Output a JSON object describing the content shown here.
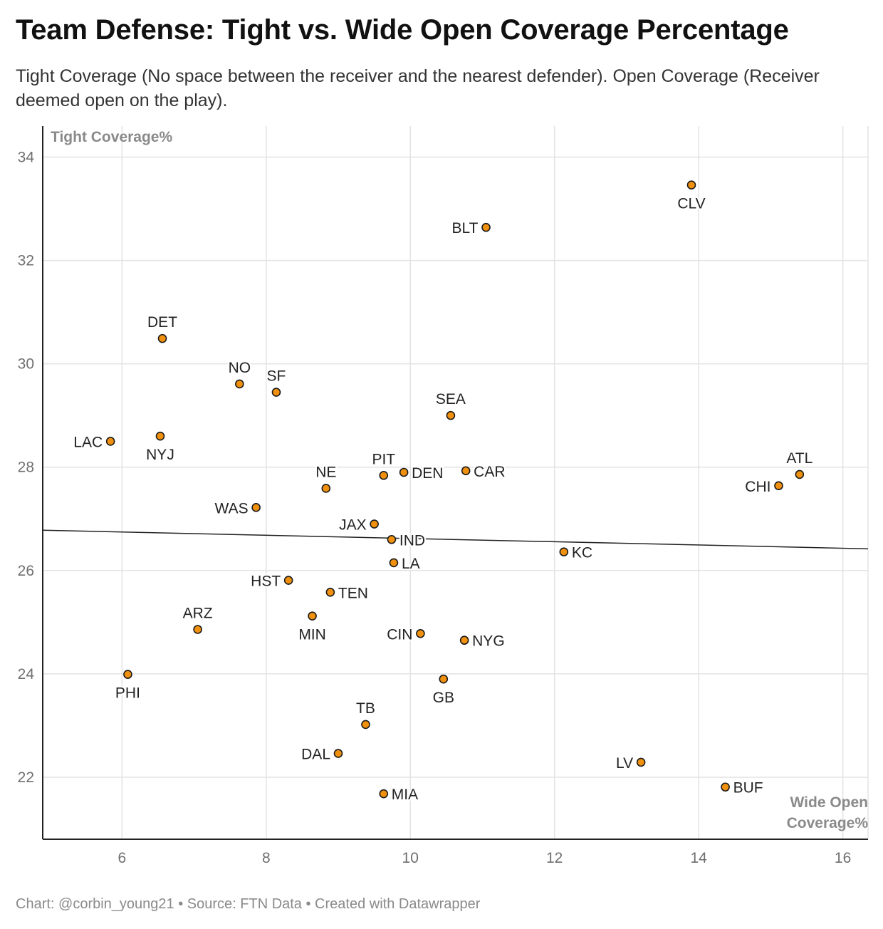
{
  "header": {
    "title": "Team Defense: Tight vs. Wide Open Coverage Percentage",
    "subtitle": "Tight Coverage (No space between the receiver and the nearest defender). Open Coverage (Receiver deemed open on the play)."
  },
  "footer": {
    "credit": "Chart: @corbin_young21 • Source: FTN Data • Created with Datawrapper"
  },
  "colors": {
    "point_fill": "#f0900f",
    "point_stroke": "#1a1a1a",
    "gridline": "#e3e3e3",
    "axis": "#222222",
    "trendline": "#222222"
  },
  "chart_data": {
    "type": "scatter",
    "xlabel": "Wide Open Coverage%",
    "ylabel": "Tight Coverage%",
    "xlim": [
      4.9,
      16.35
    ],
    "ylim": [
      20.8,
      34.6
    ],
    "xticks": [
      6,
      8,
      10,
      12,
      14,
      16
    ],
    "yticks": [
      22,
      24,
      26,
      28,
      30,
      32,
      34
    ],
    "grid": true,
    "trendline": {
      "x": [
        4.9,
        16.35
      ],
      "y": [
        26.78,
        26.42
      ]
    },
    "points": [
      {
        "team": "CLV",
        "x": 13.9,
        "y": 33.46,
        "label_pos": "below"
      },
      {
        "team": "BLT",
        "x": 11.05,
        "y": 32.64,
        "label_pos": "left"
      },
      {
        "team": "DET",
        "x": 6.56,
        "y": 30.49,
        "label_pos": "above"
      },
      {
        "team": "NO",
        "x": 7.63,
        "y": 29.61,
        "label_pos": "above"
      },
      {
        "team": "SF",
        "x": 8.14,
        "y": 29.45,
        "label_pos": "above"
      },
      {
        "team": "SEA",
        "x": 10.56,
        "y": 29.0,
        "label_pos": "above"
      },
      {
        "team": "LAC",
        "x": 5.84,
        "y": 28.5,
        "label_pos": "left"
      },
      {
        "team": "NYJ",
        "x": 6.53,
        "y": 28.6,
        "label_pos": "below"
      },
      {
        "team": "PIT",
        "x": 9.63,
        "y": 27.84,
        "label_pos": "above"
      },
      {
        "team": "DEN",
        "x": 9.91,
        "y": 27.9,
        "label_pos": "right"
      },
      {
        "team": "CAR",
        "x": 10.77,
        "y": 27.93,
        "label_pos": "right"
      },
      {
        "team": "NE",
        "x": 8.83,
        "y": 27.59,
        "label_pos": "above"
      },
      {
        "team": "ATL",
        "x": 15.4,
        "y": 27.86,
        "label_pos": "above"
      },
      {
        "team": "CHI",
        "x": 15.11,
        "y": 27.64,
        "label_pos": "left"
      },
      {
        "team": "WAS",
        "x": 7.86,
        "y": 27.22,
        "label_pos": "left"
      },
      {
        "team": "JAX",
        "x": 9.5,
        "y": 26.9,
        "label_pos": "left"
      },
      {
        "team": "IND",
        "x": 9.74,
        "y": 26.6,
        "label_pos": "right"
      },
      {
        "team": "KC",
        "x": 12.13,
        "y": 26.36,
        "label_pos": "right"
      },
      {
        "team": "LA",
        "x": 9.77,
        "y": 26.15,
        "label_pos": "right"
      },
      {
        "team": "HST",
        "x": 8.31,
        "y": 25.81,
        "label_pos": "left"
      },
      {
        "team": "TEN",
        "x": 8.89,
        "y": 25.58,
        "label_pos": "right"
      },
      {
        "team": "MIN",
        "x": 8.64,
        "y": 25.12,
        "label_pos": "below"
      },
      {
        "team": "ARZ",
        "x": 7.05,
        "y": 24.86,
        "label_pos": "above"
      },
      {
        "team": "CIN",
        "x": 10.14,
        "y": 24.78,
        "label_pos": "left"
      },
      {
        "team": "NYG",
        "x": 10.75,
        "y": 24.65,
        "label_pos": "right"
      },
      {
        "team": "PHI",
        "x": 6.08,
        "y": 23.99,
        "label_pos": "below"
      },
      {
        "team": "GB",
        "x": 10.46,
        "y": 23.9,
        "label_pos": "below"
      },
      {
        "team": "TB",
        "x": 9.38,
        "y": 23.02,
        "label_pos": "above"
      },
      {
        "team": "DAL",
        "x": 9.0,
        "y": 22.46,
        "label_pos": "left"
      },
      {
        "team": "LV",
        "x": 13.2,
        "y": 22.29,
        "label_pos": "left"
      },
      {
        "team": "BUF",
        "x": 14.37,
        "y": 21.81,
        "label_pos": "right"
      },
      {
        "team": "MIA",
        "x": 9.63,
        "y": 21.68,
        "label_pos": "right"
      }
    ]
  }
}
